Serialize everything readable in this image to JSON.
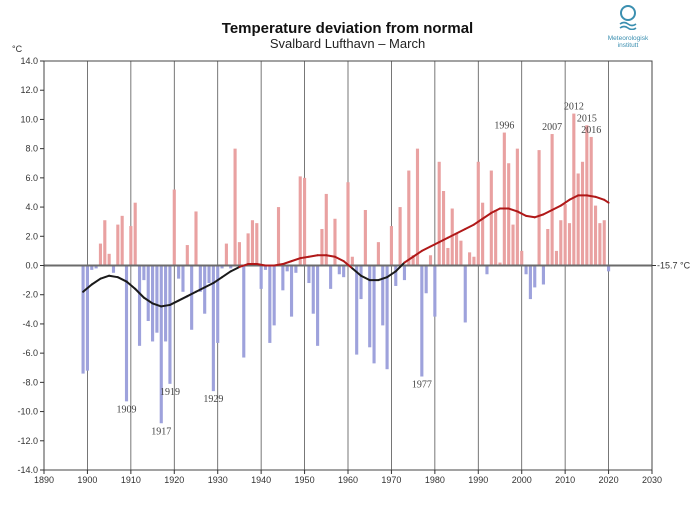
{
  "header": {
    "title": "Temperature deviation from normal",
    "subtitle": "Svalbard Lufthavn – March"
  },
  "logo": {
    "line1": "Meteorologisk",
    "line2": "institutt",
    "icon": "meteorologisk-institutt-logo-icon"
  },
  "colors": {
    "positive": "#e9a1a1",
    "negative": "#9ea2dc",
    "smooth_low": "#1a1a1a",
    "smooth_high": "#b01818",
    "zero_line": "#6b6b6b",
    "grid": "#555555"
  },
  "chart_data": {
    "type": "bar",
    "title": "Temperature deviation from normal",
    "subtitle": "Svalbard Lufthavn – March",
    "ylabel": "°C",
    "xlim": [
      1890,
      2030
    ],
    "ylim": [
      -14,
      14
    ],
    "x_ticks": [
      1890,
      1900,
      1910,
      1920,
      1930,
      1940,
      1950,
      1960,
      1970,
      1980,
      1990,
      2000,
      2010,
      2020,
      2030
    ],
    "y_ticks": [
      14.0,
      12.0,
      10.0,
      8.0,
      6.0,
      4.0,
      2.0,
      0.0,
      -2.0,
      -4.0,
      -6.0,
      -8.0,
      -10.0,
      -12.0,
      -14.0
    ],
    "normal_label": "-15.7 °C",
    "years": [
      1899,
      1900,
      1901,
      1902,
      1903,
      1904,
      1905,
      1906,
      1907,
      1908,
      1909,
      1910,
      1911,
      1912,
      1913,
      1914,
      1915,
      1916,
      1917,
      1918,
      1919,
      1920,
      1921,
      1922,
      1923,
      1924,
      1925,
      1926,
      1927,
      1928,
      1929,
      1930,
      1931,
      1932,
      1933,
      1934,
      1935,
      1936,
      1937,
      1938,
      1939,
      1940,
      1941,
      1942,
      1943,
      1944,
      1945,
      1946,
      1947,
      1948,
      1949,
      1950,
      1951,
      1952,
      1953,
      1954,
      1955,
      1956,
      1957,
      1958,
      1959,
      1960,
      1961,
      1962,
      1963,
      1964,
      1965,
      1966,
      1967,
      1968,
      1969,
      1970,
      1971,
      1972,
      1973,
      1974,
      1975,
      1976,
      1977,
      1978,
      1979,
      1980,
      1981,
      1982,
      1983,
      1984,
      1985,
      1986,
      1987,
      1988,
      1989,
      1990,
      1991,
      1992,
      1993,
      1994,
      1995,
      1996,
      1997,
      1998,
      1999,
      2000,
      2001,
      2002,
      2003,
      2004,
      2005,
      2006,
      2007,
      2008,
      2009,
      2010,
      2011,
      2012,
      2013,
      2014,
      2015,
      2016,
      2017,
      2018,
      2019,
      2020
    ],
    "values": [
      -7.4,
      -7.2,
      -0.3,
      -0.2,
      1.5,
      3.1,
      0.8,
      -0.5,
      2.8,
      3.4,
      -9.3,
      2.7,
      4.3,
      -5.5,
      -1.0,
      -3.8,
      -5.2,
      -4.6,
      -10.8,
      -5.2,
      -8.1,
      5.2,
      -0.9,
      -1.8,
      1.4,
      -4.4,
      3.7,
      -1.8,
      -3.3,
      -1.2,
      -8.6,
      -5.3,
      -0.2,
      1.5,
      -0.2,
      8.0,
      1.6,
      -6.3,
      2.2,
      3.1,
      2.9,
      -1.6,
      -0.3,
      -5.3,
      -4.1,
      4.0,
      -1.7,
      -0.4,
      -3.5,
      -0.5,
      6.1,
      6.0,
      -1.2,
      -3.3,
      -5.5,
      2.5,
      4.9,
      -1.6,
      3.2,
      -0.6,
      -0.8,
      5.7,
      0.6,
      -6.1,
      -2.3,
      3.8,
      -5.6,
      -6.7,
      1.6,
      -4.1,
      -7.1,
      2.7,
      -1.4,
      4.0,
      -1.0,
      6.5,
      0.7,
      8.0,
      -7.6,
      -1.9,
      0.7,
      -3.5,
      7.1,
      5.1,
      1.2,
      3.9,
      2.2,
      1.7,
      -3.9,
      0.9,
      0.6,
      7.1,
      4.3,
      -0.6,
      6.5,
      3.8,
      0.2,
      9.1,
      7.0,
      2.8,
      8.0,
      1.0,
      -0.6,
      -2.3,
      -1.5,
      7.9,
      -1.3,
      2.5,
      9.0,
      1.0,
      3.1,
      4.2,
      2.9,
      10.4,
      6.3,
      7.1,
      9.6,
      8.8,
      4.1,
      2.9,
      3.1,
      -0.4
    ],
    "smooth": {
      "x": [
        1899,
        1901,
        1903,
        1905,
        1907,
        1909,
        1911,
        1913,
        1915,
        1917,
        1919,
        1921,
        1923,
        1925,
        1927,
        1929,
        1931,
        1933,
        1935,
        1937,
        1939,
        1941,
        1943,
        1945,
        1947,
        1949,
        1951,
        1953,
        1955,
        1957,
        1959,
        1961,
        1963,
        1965,
        1967,
        1969,
        1971,
        1973,
        1975,
        1977,
        1979,
        1981,
        1983,
        1985,
        1987,
        1989,
        1991,
        1993,
        1995,
        1997,
        1999,
        2001,
        2003,
        2005,
        2007,
        2009,
        2011,
        2013,
        2015,
        2017,
        2019,
        2020
      ],
      "y": [
        -1.8,
        -1.3,
        -0.9,
        -0.7,
        -0.8,
        -1.1,
        -1.6,
        -2.2,
        -2.6,
        -2.8,
        -2.7,
        -2.4,
        -2.1,
        -1.8,
        -1.5,
        -1.2,
        -0.8,
        -0.4,
        -0.1,
        0.1,
        0.1,
        0.0,
        0.0,
        0.1,
        0.3,
        0.5,
        0.6,
        0.7,
        0.7,
        0.6,
        0.3,
        -0.2,
        -0.7,
        -1.0,
        -1.0,
        -0.8,
        -0.4,
        0.2,
        0.6,
        1.0,
        1.3,
        1.6,
        1.9,
        2.2,
        2.5,
        2.8,
        3.2,
        3.6,
        3.9,
        3.9,
        3.7,
        3.4,
        3.3,
        3.5,
        3.8,
        4.1,
        4.5,
        4.8,
        4.8,
        4.7,
        4.5,
        4.3
      ]
    },
    "annotations": [
      {
        "year": 1909,
        "label": "1909",
        "side": "below"
      },
      {
        "year": 1917,
        "label": "1917",
        "side": "below"
      },
      {
        "year": 1919,
        "label": "1919",
        "side": "below"
      },
      {
        "year": 1929,
        "label": "1929",
        "side": "below"
      },
      {
        "year": 1977,
        "label": "1977",
        "side": "below"
      },
      {
        "year": 1996,
        "label": "1996",
        "side": "above"
      },
      {
        "year": 2007,
        "label": "2007",
        "side": "above"
      },
      {
        "year": 2012,
        "label": "2012",
        "side": "above"
      },
      {
        "year": 2015,
        "label": "2015",
        "side": "above"
      },
      {
        "year": 2016,
        "label": "2016",
        "side": "above"
      }
    ]
  }
}
